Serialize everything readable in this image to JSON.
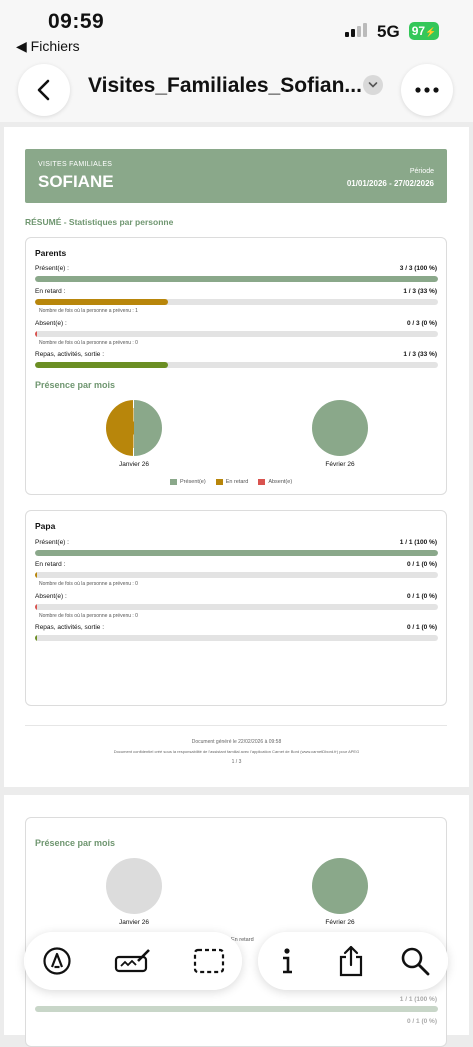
{
  "status_bar": {
    "time": "09:59",
    "back_app": "◀ Fichiers",
    "network": "5G",
    "battery": "97"
  },
  "nav": {
    "title": "Visites_Familiales_Sofian..."
  },
  "page1": {
    "header": {
      "subtitle": "VISITES FAMILIALES",
      "name": "SOFIANE",
      "period_label": "Période",
      "period_value": "01/01/2026 - 27/02/2026"
    },
    "summary_title": "RÉSUMÉ - Statistiques par personne",
    "parents": {
      "title": "Parents",
      "rows": [
        {
          "label": "Présent(e) :",
          "value": "3 / 3 (100 %)",
          "pct": 1.0,
          "color": "#8aa88a"
        },
        {
          "label": "En retard :",
          "value": "1 / 3 (33 %)",
          "pct": 0.33,
          "color": "#b8860b",
          "note": "Nombre de fois où la personne a prévenu : 1"
        },
        {
          "label": "Absent(e) :",
          "value": "0 / 3 (0 %)",
          "pct": 0,
          "color": "#d9534f",
          "note": "Nombre de fois où la personne a prévenu : 0"
        },
        {
          "label": "Repas, activités, sortie :",
          "value": "1 / 3 (33 %)",
          "pct": 0.33,
          "color": "#6b8e23"
        }
      ],
      "presence_title": "Présence par mois",
      "pies": [
        {
          "label": "Janvier 26"
        },
        {
          "label": "Février 26"
        }
      ],
      "legend": [
        {
          "label": "Présent(e)",
          "color": "#8aa88a"
        },
        {
          "label": "En retard",
          "color": "#b8860b"
        },
        {
          "label": "Absent(e)",
          "color": "#d9534f"
        }
      ]
    },
    "papa": {
      "title": "Papa",
      "rows": [
        {
          "label": "Présent(e) :",
          "value": "1 / 1 (100 %)",
          "pct": 1.0,
          "color": "#8aa88a"
        },
        {
          "label": "En retard :",
          "value": "0 / 1 (0 %)",
          "pct": 0,
          "color": "#b8860b",
          "note": "Nombre de fois où la personne a prévenu : 0"
        },
        {
          "label": "Absent(e) :",
          "value": "0 / 1 (0 %)",
          "pct": 0,
          "color": "#d9534f",
          "note": "Nombre de fois où la personne a prévenu : 0"
        },
        {
          "label": "Repas, activités, sortie :",
          "value": "0 / 1 (0 %)",
          "pct": 0,
          "color": "#6b8e23"
        }
      ]
    },
    "footer": {
      "generated": "Document généré le 22/02/2026 à 09:58",
      "confidential": "Document confidentiel créé sous la responsabilité de l'assistant familial avec l'application Carnet de Bord (www.carnetDbord.fr) pour APEG",
      "page": "1 / 3"
    }
  },
  "page2": {
    "presence_title": "Présence par mois",
    "pies": [
      {
        "label": "Janvier 26"
      },
      {
        "label": "Février 26"
      }
    ],
    "legend_partial": "En retard",
    "row_value": "1 / 1 (100 %)",
    "row_value2": "0 / 1 (0 %)"
  },
  "toolbar": {
    "left": [
      "markup-icon",
      "signature-icon",
      "select-area-icon"
    ],
    "right": [
      "info-icon",
      "share-icon",
      "search-icon"
    ]
  }
}
